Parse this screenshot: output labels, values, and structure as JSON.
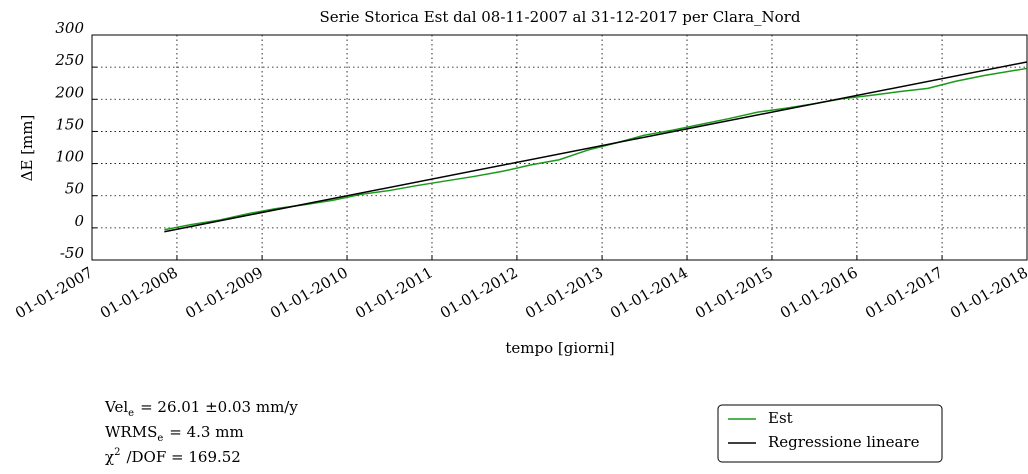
{
  "chart_data": {
    "type": "line",
    "title": "Serie Storica Est dal 08-11-2007 al 31-12-2017 per Clara_Nord",
    "x_label": "tempo [giorni]",
    "y_label": "ΔE  [mm]",
    "xlim": [
      "2007-01-01",
      "2018-01-01"
    ],
    "xticks": [
      {
        "value": "2007-01-01",
        "label": "01-01-2007"
      },
      {
        "value": "2008-01-01",
        "label": "01-01-2008"
      },
      {
        "value": "2009-01-01",
        "label": "01-01-2009"
      },
      {
        "value": "2010-01-01",
        "label": "01-01-2010"
      },
      {
        "value": "2011-01-01",
        "label": "01-01-2011"
      },
      {
        "value": "2012-01-01",
        "label": "01-01-2012"
      },
      {
        "value": "2013-01-01",
        "label": "01-01-2013"
      },
      {
        "value": "2014-01-01",
        "label": "01-01-2014"
      },
      {
        "value": "2015-01-01",
        "label": "01-01-2015"
      },
      {
        "value": "2016-01-01",
        "label": "01-01-2016"
      },
      {
        "value": "2017-01-01",
        "label": "01-01-2017"
      },
      {
        "value": "2018-01-01",
        "label": "01-01-2018"
      }
    ],
    "ylim": [
      -50,
      300
    ],
    "yticks": [
      -50,
      0,
      50,
      100,
      150,
      200,
      250,
      300
    ],
    "grid": true,
    "legend": "lower right",
    "series": [
      {
        "name": "Est",
        "color": "#1a9a1a",
        "x": [
          "2007-11-08",
          "2008-03-01",
          "2008-07-01",
          "2008-11-01",
          "2009-03-01",
          "2009-07-01",
          "2009-11-01",
          "2010-03-01",
          "2010-07-01",
          "2010-11-01",
          "2011-03-01",
          "2011-07-01",
          "2011-11-01",
          "2012-03-01",
          "2012-07-01",
          "2012-11-01",
          "2013-03-01",
          "2013-07-01",
          "2013-11-01",
          "2014-03-01",
          "2014-07-01",
          "2014-11-01",
          "2015-03-01",
          "2015-07-01",
          "2015-11-01",
          "2016-03-01",
          "2016-07-01",
          "2016-11-01",
          "2017-03-01",
          "2017-07-01",
          "2017-12-31"
        ],
        "values": [
          -3,
          5,
          12,
          22,
          30,
          36,
          43,
          52,
          58,
          66,
          73,
          80,
          88,
          98,
          106,
          121,
          132,
          144,
          152,
          161,
          170,
          180,
          186,
          193,
          201,
          206,
          212,
          217,
          228,
          237,
          248
        ]
      },
      {
        "name": "Regressione lineare",
        "color": "#000000",
        "x": [
          "2007-11-08",
          "2017-12-31"
        ],
        "values": [
          -6,
          258
        ]
      }
    ],
    "annotations": [
      {
        "base": "Vel",
        "sub": "e",
        "rest": "=  26.01 ±0.03  mm/y"
      },
      {
        "base": "WRMS",
        "sub": "e",
        "rest": "=  4.3  mm"
      },
      {
        "base": "χ",
        "sup": "2",
        "rest": "/DOF  =  169.52"
      }
    ]
  }
}
